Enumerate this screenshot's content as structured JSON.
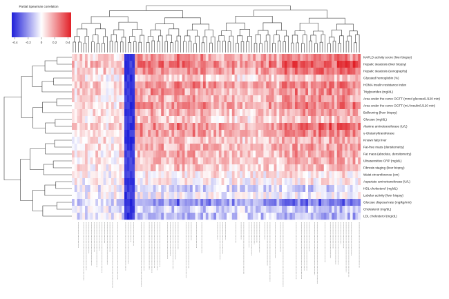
{
  "chart_data": {
    "type": "heatmap",
    "legend": {
      "title": "Partial Spearman correlation",
      "ticks": [
        "-0.4",
        "-0.2",
        "0",
        "0.2",
        "0.4"
      ],
      "tick_values": [
        -0.4,
        -0.2,
        0,
        0.2,
        0.4
      ],
      "colors": [
        "#1f1fd9",
        "#ffffff",
        "#e11f26"
      ]
    },
    "rows": [
      {
        "label": "NAFLD activity score (liver biopsy)",
        "mean": 0.2
      },
      {
        "label": "Hepatic steatosis (liver biopsy)",
        "mean": 0.26
      },
      {
        "label": "Hepatic steatosis (sonography)",
        "mean": 0.22
      },
      {
        "label": "Glycated hemoglobin (%)",
        "mean": 0.1
      },
      {
        "label": "HOMA insulin resistance index",
        "mean": 0.2
      },
      {
        "label": "Triglycerides (mg/dL)",
        "mean": 0.18
      },
      {
        "label": "Area under the curve OGTT (mmol glucose/L/120 min)",
        "mean": 0.16
      },
      {
        "label": "Area under the curve OGTT (mU insulin/L/120 min)",
        "mean": 0.2
      },
      {
        "label": "Ballooning (liver biopsy)",
        "mean": 0.14
      },
      {
        "label": "Glucose (mg/dL)",
        "mean": 0.1
      },
      {
        "label": "Alanine aminotransferase (U/L)",
        "mean": 0.22
      },
      {
        "label": "γ-Glutamyltransferase",
        "mean": 0.18
      },
      {
        "label": "Known fatty liver",
        "mean": 0.12
      },
      {
        "label": "Fat-free mass (densitometry)",
        "mean": 0.15
      },
      {
        "label": "Fat mass (absolute, densitometry)",
        "mean": 0.14
      },
      {
        "label": "Ultrasensitive CRP (mg/dL)",
        "mean": 0.12
      },
      {
        "label": "Fibrosis staging (liver biopsy)",
        "mean": 0.1
      },
      {
        "label": "Waist circumference (cm)",
        "mean": 0.04
      },
      {
        "label": "Aspartate aminotransferase (U/L)",
        "mean": 0.02
      },
      {
        "label": "HDL cholesterol (mg/dL)",
        "mean": -0.08
      },
      {
        "label": "Lobular activity (liver biopsy)",
        "mean": -0.02
      },
      {
        "label": "Glucose disposal rate (mg/kg/min)",
        "mean": -0.22
      },
      {
        "label": "Cholesterol (mg/dL)",
        "mean": -0.1
      },
      {
        "label": "LDL cholesterol (mg/dL)",
        "mean": -0.12
      }
    ],
    "n_columns": 110,
    "column_labels_note": "Rotated column labels (metabolites/pathways) are too small to read in the source image.",
    "row_dendrogram": true,
    "column_dendrogram": true,
    "value_range": [
      -0.45,
      0.45
    ]
  }
}
